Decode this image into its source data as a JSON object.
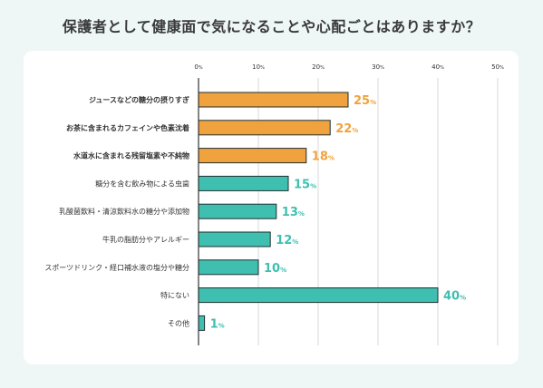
{
  "title": "保護者として健康面で気になることや心配ごとはありますか？",
  "colors": {
    "highlight": "#f0a23e",
    "normal": "#3fbfb0",
    "bar_stroke": "#1f2f2f",
    "grid": "#d9d9d9",
    "background": "#eef6f6",
    "card": "#ffffff"
  },
  "chart_data": {
    "type": "bar",
    "orientation": "horizontal",
    "title": "保護者として健康面で気になることや心配ごとはありますか？",
    "unit": "%",
    "xlim": [
      0,
      50
    ],
    "ticks": [
      0,
      10,
      20,
      30,
      40,
      50
    ],
    "grid": true,
    "categories": [
      "ジュースなどの糖分の摂りすぎ",
      "お茶に含まれるカフェインや色素沈着",
      "水道水に含まれる残留塩素や不純物",
      "糖分を含む飲み物による虫歯",
      "乳酸菌飲料・清涼飲料水の糖分や添加物",
      "牛乳の脂肪分やアレルギー",
      "スポーツドリンク・経口補水液の塩分や糖分",
      "特にない",
      "その他"
    ],
    "values": [
      25,
      22,
      18,
      15,
      13,
      12,
      10,
      40,
      1
    ],
    "highlighted": [
      true,
      true,
      true,
      false,
      false,
      false,
      false,
      false,
      false
    ]
  }
}
